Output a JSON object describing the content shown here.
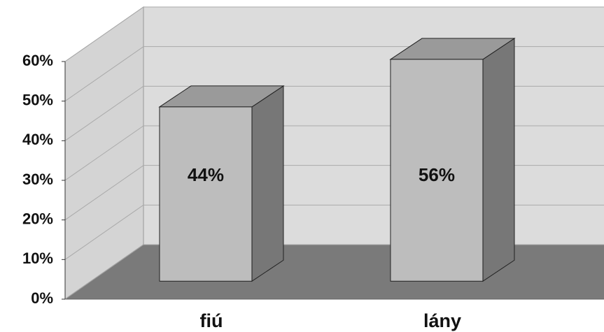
{
  "chart_data": {
    "type": "bar3d",
    "categories": [
      "fiú",
      "lány"
    ],
    "values": [
      44,
      56
    ],
    "value_labels": [
      "44%",
      "56%"
    ],
    "ylim": [
      0,
      60
    ],
    "yticks": [
      {
        "value": 0,
        "label": "0%"
      },
      {
        "value": 10,
        "label": "10%"
      },
      {
        "value": 20,
        "label": "20%"
      },
      {
        "value": 30,
        "label": "30%"
      },
      {
        "value": 40,
        "label": "40%"
      },
      {
        "value": 50,
        "label": "50%"
      },
      {
        "value": 60,
        "label": "60%"
      }
    ],
    "grid": true,
    "color": "#bdbdbd"
  }
}
